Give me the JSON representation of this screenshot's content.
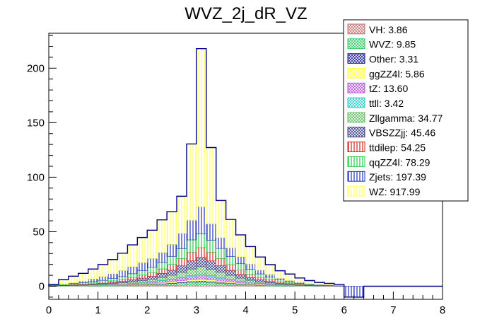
{
  "chart_data": {
    "type": "bar",
    "title": "WVZ_2j_dR_VZ",
    "xlabel": "",
    "ylabel": "",
    "xlim": [
      0,
      8
    ],
    "ylim": [
      -12,
      232
    ],
    "bin_width": 0.2,
    "x_ticks": [
      "0",
      "1",
      "2",
      "3",
      "4",
      "5",
      "6",
      "7",
      "8"
    ],
    "y_ticks": [
      "0",
      "50",
      "100",
      "150",
      "200"
    ],
    "x_tick_values": [
      0,
      1,
      2,
      3,
      4,
      5,
      6,
      7,
      8
    ],
    "y_tick_values": [
      0,
      50,
      100,
      150,
      200
    ],
    "grid": false,
    "legend_position": "top-right",
    "stacked": true,
    "bin_edges": [
      0,
      0.2,
      0.4,
      0.6,
      0.8,
      1.0,
      1.2,
      1.4,
      1.6,
      1.8,
      2.0,
      2.2,
      2.4,
      2.6,
      2.8,
      3.0,
      3.2,
      3.4,
      3.6,
      3.8,
      4.0,
      4.2,
      4.4,
      4.6,
      4.8,
      5.0,
      5.2,
      5.4,
      5.6,
      5.8,
      6.0,
      6.2,
      6.4,
      6.6,
      6.8,
      7.0,
      7.2,
      7.4,
      7.6,
      7.8,
      8.0
    ],
    "series": [
      {
        "name": "VH: 3.86",
        "color": "#c47a7a",
        "pattern": "cross",
        "values": [
          0,
          0,
          0,
          0,
          0.1,
          0.1,
          0.2,
          0.2,
          0.3,
          0.4,
          0.5,
          0.6,
          0.7,
          0.9,
          1.1,
          1.2,
          1.1,
          0.9,
          0.7,
          0.5,
          0.4,
          0.3,
          0.2,
          0.1,
          0.1,
          0,
          0,
          0,
          0,
          0,
          0,
          0,
          0,
          0,
          0,
          0,
          0,
          0,
          0,
          0
        ]
      },
      {
        "name": "WVZ: 9.85",
        "color": "#33cc66",
        "pattern": "cross",
        "values": [
          0.1,
          0.1,
          0.2,
          0.2,
          0.3,
          0.4,
          0.5,
          0.6,
          0.8,
          1.0,
          1.2,
          1.5,
          1.8,
          2.2,
          2.6,
          2.8,
          2.5,
          2.0,
          1.6,
          1.2,
          0.9,
          0.7,
          0.5,
          0.4,
          0.3,
          0.2,
          0.1,
          0.1,
          0,
          0,
          0,
          0,
          0,
          0,
          0,
          0,
          0,
          0,
          0,
          0
        ]
      },
      {
        "name": "Other: 3.31",
        "color": "#222299",
        "pattern": "cross",
        "values": [
          0,
          0,
          0,
          0.1,
          0.1,
          0.1,
          0.2,
          0.2,
          0.3,
          0.3,
          0.4,
          0.5,
          0.6,
          0.7,
          0.9,
          1.0,
          0.9,
          0.7,
          0.6,
          0.4,
          0.3,
          0.2,
          0.2,
          0.1,
          0.1,
          0,
          0,
          0,
          0,
          0,
          0,
          0,
          0,
          0,
          0,
          0,
          0,
          0,
          0,
          0
        ]
      },
      {
        "name": "ggZZ4l: 5.86",
        "color": "#ffff44",
        "pattern": "cross",
        "values": [
          0,
          0.1,
          0.1,
          0.1,
          0.2,
          0.2,
          0.3,
          0.4,
          0.5,
          0.6,
          0.7,
          0.9,
          1.0,
          1.2,
          1.4,
          1.5,
          1.4,
          1.2,
          1.0,
          0.8,
          0.6,
          0.5,
          0.3,
          0.2,
          0.2,
          0.1,
          0.1,
          0,
          0,
          0,
          0,
          0,
          0,
          0,
          0,
          0,
          0,
          0,
          0,
          0
        ]
      },
      {
        "name": "tZ: 13.60",
        "color": "#bb55dd",
        "pattern": "cross",
        "values": [
          0.1,
          0.1,
          0.2,
          0.2,
          0.3,
          0.4,
          0.5,
          0.6,
          0.8,
          1.0,
          1.2,
          1.6,
          2.0,
          2.5,
          3.0,
          3.5,
          3.0,
          2.5,
          2.0,
          1.5,
          1.2,
          0.9,
          0.7,
          0.5,
          0.4,
          0.3,
          0.2,
          0.1,
          0.1,
          0,
          0,
          0,
          0,
          0,
          0,
          0,
          0,
          0,
          0,
          0
        ]
      },
      {
        "name": "ttll: 3.42",
        "color": "#33cccc",
        "pattern": "cross",
        "values": [
          0,
          0,
          0,
          0.1,
          0.1,
          0.1,
          0.1,
          0.2,
          0.2,
          0.3,
          0.3,
          0.4,
          0.5,
          0.6,
          0.8,
          0.9,
          0.8,
          0.7,
          0.5,
          0.4,
          0.3,
          0.2,
          0.2,
          0.1,
          0.1,
          0,
          0,
          0,
          0,
          0,
          0,
          0,
          0,
          0,
          0,
          0,
          0,
          0,
          0,
          0
        ]
      },
      {
        "name": "Zllgamma: 34.77",
        "color": "#66bb66",
        "pattern": "cross",
        "values": [
          0.2,
          0.2,
          0.3,
          0.3,
          0.4,
          0.6,
          0.8,
          1.0,
          1.3,
          1.6,
          2.0,
          2.6,
          3.5,
          4.6,
          6.0,
          7.0,
          6.0,
          4.8,
          3.6,
          2.6,
          1.8,
          1.2,
          0.9,
          0.6,
          0.4,
          0.3,
          0.2,
          0.1,
          0.1,
          0,
          0,
          0,
          0,
          0,
          0,
          0,
          0,
          0,
          0,
          0
        ]
      },
      {
        "name": "VBSZZjj: 45.46",
        "color": "#444488",
        "pattern": "cross",
        "values": [
          0.3,
          0.3,
          0.4,
          0.5,
          0.6,
          0.8,
          1.0,
          1.3,
          1.7,
          2.2,
          2.8,
          3.6,
          4.6,
          6.0,
          7.5,
          8.5,
          7.5,
          6.0,
          4.6,
          3.4,
          2.5,
          1.8,
          1.3,
          0.9,
          0.6,
          0.4,
          0.3,
          0.2,
          0.1,
          0.1,
          0,
          0,
          0,
          0,
          0,
          0,
          0,
          0,
          0,
          0
        ]
      },
      {
        "name": "ttdilep: 54.25",
        "color": "#dd2222",
        "pattern": "vertical",
        "values": [
          0.4,
          0.5,
          0.6,
          0.7,
          0.9,
          1.1,
          1.4,
          1.8,
          2.3,
          2.8,
          3.4,
          4.2,
          5.3,
          6.6,
          8.0,
          9.0,
          8.0,
          6.6,
          5.2,
          4.0,
          3.0,
          2.2,
          1.6,
          1.1,
          0.8,
          0.5,
          0.3,
          0.2,
          0.1,
          0.1,
          0,
          0,
          0,
          0,
          0,
          0,
          0,
          0,
          0,
          0
        ]
      },
      {
        "name": "qqZZ4l: 78.29",
        "color": "#22cc44",
        "pattern": "vertical",
        "values": [
          0.6,
          0.7,
          0.9,
          1.1,
          1.3,
          1.6,
          2.0,
          2.5,
          3.2,
          4.0,
          4.9,
          6.0,
          7.4,
          9.2,
          11.2,
          12.5,
          11.0,
          9.2,
          7.4,
          5.8,
          4.4,
          3.3,
          2.4,
          1.7,
          1.2,
          0.8,
          0.5,
          0.3,
          0.2,
          0.1,
          0.1,
          0,
          0,
          0,
          0,
          0,
          0,
          0,
          0,
          0
        ]
      },
      {
        "name": "Zjets: 197.39",
        "color": "#2233bb",
        "pattern": "vertical",
        "values": [
          0,
          0,
          0.5,
          1.5,
          2.5,
          3.5,
          4.5,
          5.5,
          6.5,
          7.5,
          8.0,
          9.0,
          11.0,
          14.0,
          18.0,
          25.0,
          15.0,
          10.0,
          8.0,
          6.5,
          5.0,
          3.5,
          2.5,
          1.5,
          1.0,
          1.0,
          0.5,
          0.5,
          0.5,
          0.5,
          -10,
          -10,
          0,
          0,
          0,
          0,
          0,
          0,
          0,
          0
        ]
      },
      {
        "name": "WZ: 917.99",
        "color": "#ffff66",
        "pattern": "vertical",
        "values": [
          0,
          4,
          6,
          7,
          9,
          11,
          13,
          16,
          20,
          23,
          26,
          30,
          30,
          34,
          70,
          145,
          70,
          34,
          26,
          20,
          16,
          12,
          9,
          7,
          6,
          4,
          3,
          2,
          1.5,
          0.8,
          0,
          0,
          0,
          0,
          0,
          0,
          0,
          0,
          0,
          0
        ]
      }
    ]
  }
}
